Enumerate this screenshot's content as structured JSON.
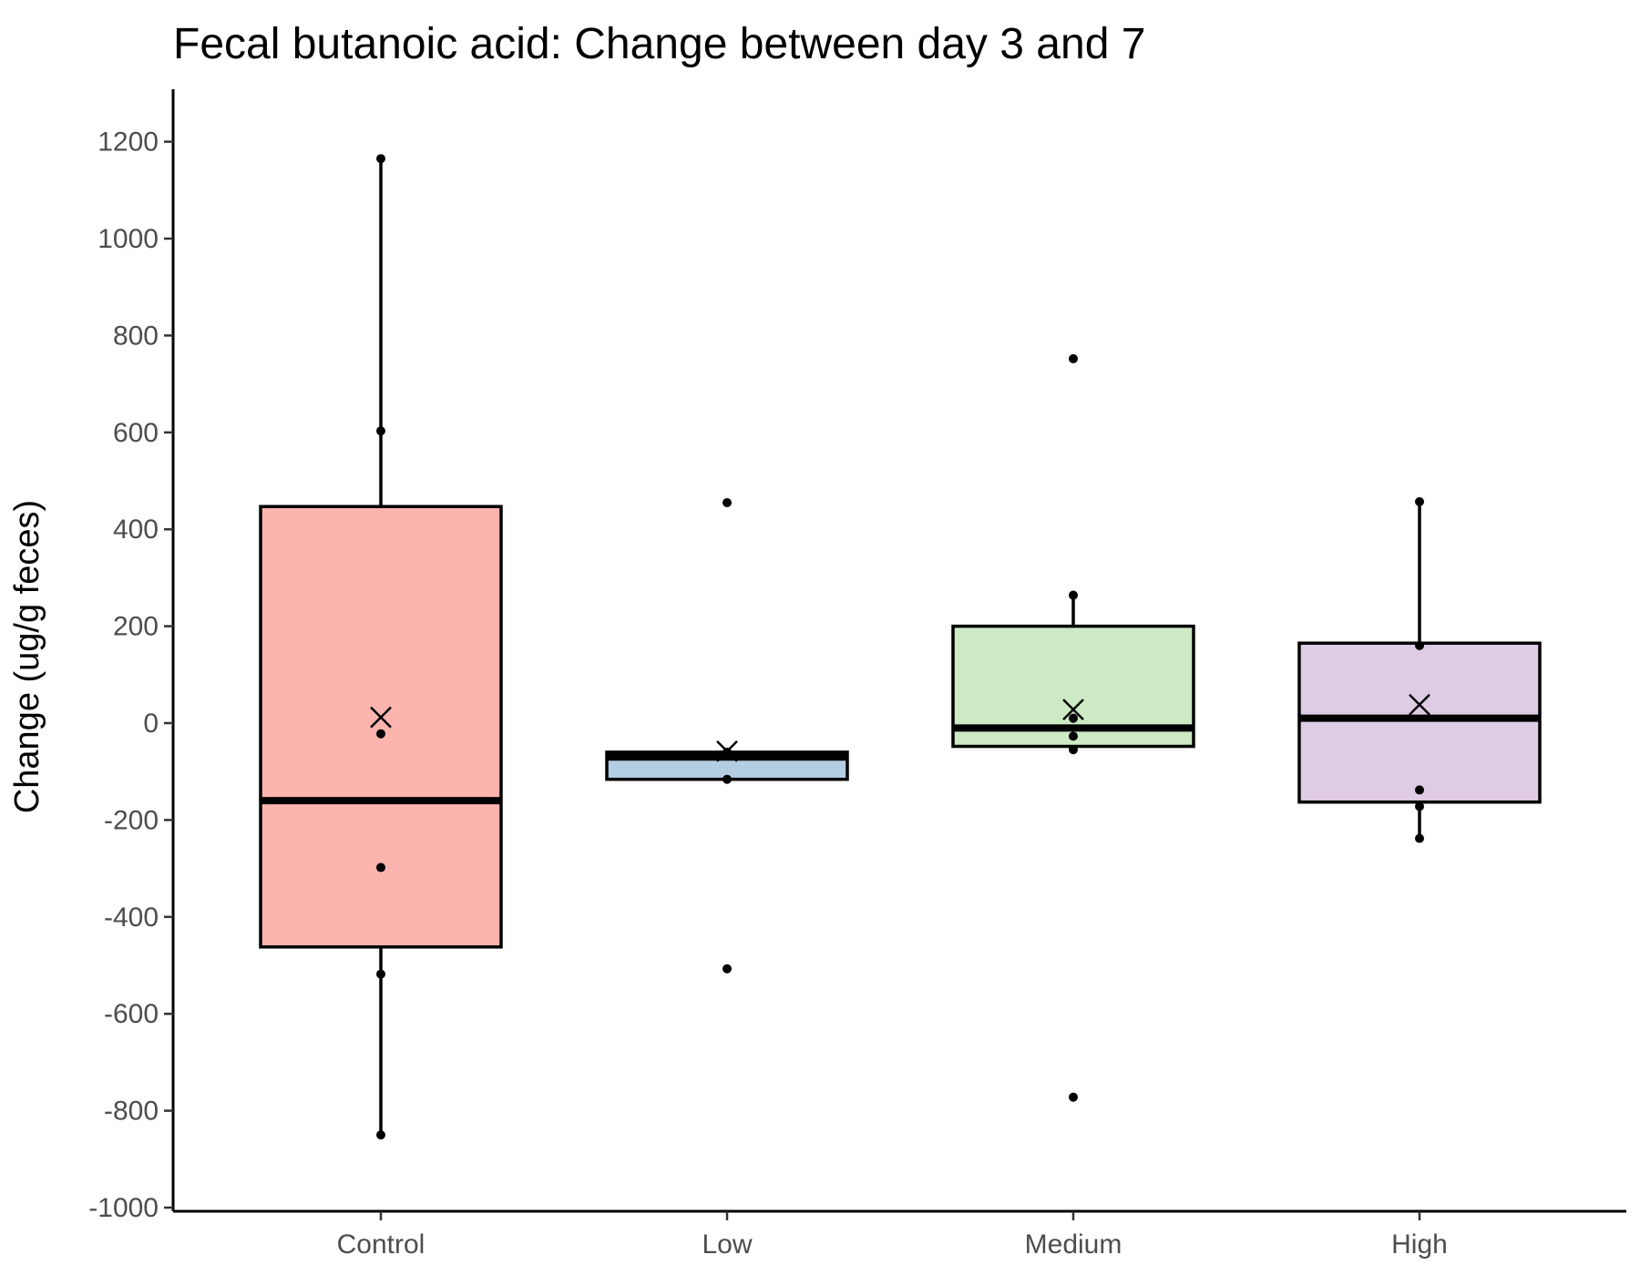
{
  "chart_data": {
    "type": "box",
    "title": "Fecal butanoic acid: Change between day 3 and 7",
    "xlabel": "",
    "ylabel": "Change (ug/g feces)",
    "ylim": [
      -1000,
      1300
    ],
    "yticks": [
      1200,
      1000,
      800,
      600,
      400,
      200,
      0,
      -200,
      -400,
      -600,
      -800,
      -1000
    ],
    "ytick_labels": [
      "1200",
      "1000",
      "800",
      "600",
      "400",
      "200",
      "0",
      "-200",
      "-400",
      "-600",
      "-800",
      "-1000"
    ],
    "categories": [
      "Control",
      "Low",
      "Medium",
      "High"
    ],
    "grid": false,
    "legend": "none",
    "groups": [
      {
        "name": "Control",
        "color": "#FBB4AE",
        "q1": -462,
        "median": -160,
        "q3": 447,
        "whisker_low": -850,
        "whisker_high": 1165,
        "mean": 12,
        "points": [
          1165,
          603,
          -22,
          -298,
          -518,
          -850
        ]
      },
      {
        "name": "Low",
        "color": "#B3CDE3",
        "q1": -116,
        "median": -70,
        "q3": -60,
        "whisker_low": -116,
        "whisker_high": -60,
        "mean": -58,
        "points": [
          455,
          -60,
          -116,
          -507
        ]
      },
      {
        "name": "Medium",
        "color": "#CCEBC5",
        "q1": -48,
        "median": -10,
        "q3": 200,
        "whisker_low": -48,
        "whisker_high": 264,
        "mean": 28,
        "points": [
          752,
          264,
          10,
          -27,
          -55,
          -772
        ]
      },
      {
        "name": "High",
        "color": "#DECBE4",
        "q1": -163,
        "median": 10,
        "q3": 165,
        "whisker_low": -238,
        "whisker_high": 457,
        "mean": 38,
        "points": [
          457,
          160,
          -138,
          -172,
          -238
        ]
      }
    ]
  }
}
